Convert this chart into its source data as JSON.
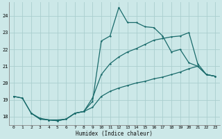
{
  "xlabel": "Humidex (Indice chaleur)",
  "bg_color": "#cce8e8",
  "grid_color": "#aacece",
  "line_color": "#1a6b6b",
  "xlim": [
    -0.5,
    23.5
  ],
  "ylim": [
    17.5,
    24.8
  ],
  "xticks": [
    0,
    1,
    2,
    3,
    4,
    5,
    6,
    7,
    8,
    9,
    10,
    11,
    12,
    13,
    14,
    15,
    16,
    17,
    18,
    19,
    20,
    21,
    22,
    23
  ],
  "yticks": [
    18,
    19,
    20,
    21,
    22,
    23,
    24
  ],
  "curve1_x": [
    0,
    1,
    2,
    3,
    4,
    5,
    6,
    7,
    8,
    9,
    10,
    11,
    12,
    13,
    14,
    15,
    16,
    17,
    18,
    19,
    20,
    21,
    22,
    23
  ],
  "curve1_y": [
    19.2,
    19.1,
    18.2,
    17.9,
    17.8,
    17.8,
    17.85,
    18.2,
    18.3,
    18.9,
    22.5,
    22.8,
    24.5,
    23.6,
    23.6,
    23.35,
    23.3,
    22.8,
    21.85,
    22.0,
    21.2,
    21.0,
    20.5,
    20.4
  ],
  "curve2_x": [
    0,
    1,
    2,
    3,
    4,
    5,
    6,
    7,
    8,
    9,
    10,
    11,
    12,
    13,
    14,
    15,
    16,
    17,
    18,
    19,
    20,
    21,
    22,
    23
  ],
  "curve2_y": [
    19.2,
    19.1,
    18.2,
    17.85,
    17.8,
    17.75,
    17.85,
    18.2,
    18.3,
    19.1,
    20.5,
    21.15,
    21.55,
    21.85,
    22.05,
    22.3,
    22.55,
    22.65,
    22.75,
    22.8,
    23.0,
    21.15,
    20.5,
    20.4
  ],
  "curve3_x": [
    2,
    3,
    4,
    5,
    6,
    7,
    8,
    9,
    10,
    11,
    12,
    13,
    14,
    15,
    16,
    17,
    18,
    19,
    20,
    21,
    22,
    23
  ],
  "curve3_y": [
    18.2,
    17.85,
    17.8,
    17.75,
    17.85,
    18.2,
    18.3,
    18.55,
    19.2,
    19.5,
    19.7,
    19.85,
    20.0,
    20.1,
    20.25,
    20.35,
    20.5,
    20.65,
    20.85,
    21.0,
    20.5,
    20.4
  ]
}
